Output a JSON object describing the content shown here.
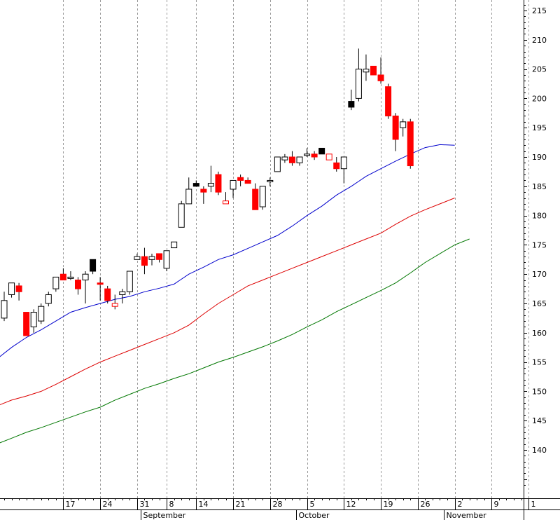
{
  "chart_data": {
    "type": "candlestick",
    "y_axis": {
      "side": "right",
      "ylim": [
        134,
        216
      ],
      "ticks": [
        140,
        145,
        150,
        155,
        160,
        165,
        170,
        175,
        180,
        185,
        190,
        195,
        200,
        205,
        210,
        215
      ]
    },
    "x_axis": {
      "day_ticks": [
        {
          "label": "17",
          "x": 8
        },
        {
          "label": "24",
          "x": 13
        },
        {
          "label": "31",
          "x": 18
        },
        {
          "label": "8",
          "x": 22
        },
        {
          "label": "14",
          "x": 26
        },
        {
          "label": "21",
          "x": 31
        },
        {
          "label": "28",
          "x": 36
        },
        {
          "label": "5",
          "x": 41
        },
        {
          "label": "12",
          "x": 46
        },
        {
          "label": "19",
          "x": 51
        },
        {
          "label": "26",
          "x": 56
        },
        {
          "label": "2",
          "x": 61
        },
        {
          "label": "9",
          "x": 66
        },
        {
          "label": "1",
          "x": 71
        }
      ],
      "month_labels": [
        {
          "label": "September",
          "x": 19
        },
        {
          "label": "October",
          "x": 40
        },
        {
          "label": "November",
          "x": 60
        }
      ],
      "grid": "dashed-vertical"
    },
    "colors": {
      "up_candle": "#ffffff",
      "down_candle": "#ff0000",
      "highlight_candle": "#000000",
      "ma_short": "#0000cc",
      "ma_mid": "#dd0000",
      "ma_long": "#007700"
    },
    "candles": [
      {
        "x": 0,
        "o": 162.5,
        "h": 167.0,
        "l": 162.0,
        "c": 165.5,
        "color": "white"
      },
      {
        "x": 1,
        "o": 166.5,
        "h": 168.5,
        "l": 166.0,
        "c": 168.5,
        "color": "white"
      },
      {
        "x": 2,
        "o": 168.0,
        "h": 168.5,
        "l": 165.5,
        "c": 167.0,
        "color": "red"
      },
      {
        "x": 3,
        "o": 163.5,
        "h": 163.5,
        "l": 159.5,
        "c": 159.5,
        "color": "red"
      },
      {
        "x": 4,
        "o": 161.0,
        "h": 164.0,
        "l": 160.0,
        "c": 163.5,
        "color": "white"
      },
      {
        "x": 5,
        "o": 162.0,
        "h": 165.0,
        "l": 161.5,
        "c": 164.5,
        "color": "white"
      },
      {
        "x": 6,
        "o": 165.0,
        "h": 167.0,
        "l": 164.5,
        "c": 166.5,
        "color": "white"
      },
      {
        "x": 7,
        "o": 167.5,
        "h": 169.5,
        "l": 167.0,
        "c": 169.5,
        "color": "white"
      },
      {
        "x": 8,
        "o": 170.0,
        "h": 171.0,
        "l": 169.0,
        "c": 169.0,
        "color": "red"
      },
      {
        "x": 9,
        "o": 169.5,
        "h": 170.5,
        "l": 169.0,
        "c": 169.5,
        "color": "white"
      },
      {
        "x": 10,
        "o": 169.0,
        "h": 169.5,
        "l": 166.5,
        "c": 167.5,
        "color": "red"
      },
      {
        "x": 11,
        "o": 169.0,
        "h": 170.5,
        "l": 165.0,
        "c": 170.0,
        "color": "white"
      },
      {
        "x": 12,
        "o": 172.5,
        "h": 172.5,
        "l": 170.0,
        "c": 170.5,
        "color": "black"
      },
      {
        "x": 13,
        "o": 168.5,
        "h": 169.5,
        "l": 165.5,
        "c": 168.5,
        "color": "red"
      },
      {
        "x": 14,
        "o": 167.5,
        "h": 168.0,
        "l": 165.0,
        "c": 165.5,
        "color": "red"
      },
      {
        "x": 15,
        "o": 165.0,
        "h": 166.5,
        "l": 164.0,
        "c": 164.5,
        "color": "red_hollow"
      },
      {
        "x": 16,
        "o": 166.5,
        "h": 167.5,
        "l": 165.0,
        "c": 167.0,
        "color": "white"
      },
      {
        "x": 17,
        "o": 167.0,
        "h": 170.5,
        "l": 166.5,
        "c": 170.5,
        "color": "white"
      },
      {
        "x": 18,
        "o": 172.5,
        "h": 173.5,
        "l": 172.5,
        "c": 173.0,
        "color": "white"
      },
      {
        "x": 19,
        "o": 173.0,
        "h": 174.5,
        "l": 170.0,
        "c": 171.5,
        "color": "red"
      },
      {
        "x": 20,
        "o": 172.5,
        "h": 173.5,
        "l": 171.5,
        "c": 173.0,
        "color": "white"
      },
      {
        "x": 21,
        "o": 173.5,
        "h": 173.5,
        "l": 172.0,
        "c": 172.5,
        "color": "red"
      },
      {
        "x": 22,
        "o": 171.0,
        "h": 174.0,
        "l": 170.5,
        "c": 174.0,
        "color": "white"
      },
      {
        "x": 23,
        "o": 174.5,
        "h": 175.5,
        "l": 174.5,
        "c": 175.5,
        "color": "white"
      },
      {
        "x": 24,
        "o": 178.0,
        "h": 182.5,
        "l": 178.0,
        "c": 182.0,
        "color": "white"
      },
      {
        "x": 25,
        "o": 182.0,
        "h": 186.5,
        "l": 182.0,
        "c": 184.5,
        "color": "white"
      },
      {
        "x": 26,
        "o": 185.5,
        "h": 186.0,
        "l": 185.0,
        "c": 185.0,
        "color": "black"
      },
      {
        "x": 27,
        "o": 184.5,
        "h": 185.0,
        "l": 182.0,
        "c": 184.0,
        "color": "red"
      },
      {
        "x": 28,
        "o": 185.5,
        "h": 188.5,
        "l": 184.0,
        "c": 185.0,
        "color": "white"
      },
      {
        "x": 29,
        "o": 187.0,
        "h": 187.5,
        "l": 183.5,
        "c": 184.0,
        "color": "red"
      },
      {
        "x": 30,
        "o": 182.5,
        "h": 184.0,
        "l": 182.0,
        "c": 182.0,
        "color": "red_hollow"
      },
      {
        "x": 31,
        "o": 184.5,
        "h": 186.0,
        "l": 183.0,
        "c": 186.0,
        "color": "white"
      },
      {
        "x": 32,
        "o": 186.5,
        "h": 187.0,
        "l": 185.0,
        "c": 186.0,
        "color": "red"
      },
      {
        "x": 33,
        "o": 186.0,
        "h": 186.5,
        "l": 185.5,
        "c": 185.5,
        "color": "red"
      },
      {
        "x": 34,
        "o": 184.5,
        "h": 185.5,
        "l": 181.0,
        "c": 181.0,
        "color": "red"
      },
      {
        "x": 35,
        "o": 181.5,
        "h": 185.0,
        "l": 181.0,
        "c": 185.0,
        "color": "white"
      },
      {
        "x": 36,
        "o": 186.0,
        "h": 186.5,
        "l": 185.0,
        "c": 186.0,
        "color": "white"
      },
      {
        "x": 37,
        "o": 187.5,
        "h": 190.0,
        "l": 187.5,
        "c": 190.0,
        "color": "white"
      },
      {
        "x": 38,
        "o": 189.5,
        "h": 190.5,
        "l": 189.0,
        "c": 190.0,
        "color": "white"
      },
      {
        "x": 39,
        "o": 190.0,
        "h": 191.0,
        "l": 188.5,
        "c": 189.0,
        "color": "red"
      },
      {
        "x": 40,
        "o": 189.0,
        "h": 190.0,
        "l": 188.5,
        "c": 190.0,
        "color": "white"
      },
      {
        "x": 41,
        "o": 190.5,
        "h": 191.5,
        "l": 190.0,
        "c": 190.5,
        "color": "white"
      },
      {
        "x": 42,
        "o": 190.5,
        "h": 191.0,
        "l": 189.5,
        "c": 190.0,
        "color": "red"
      },
      {
        "x": 43,
        "o": 191.5,
        "h": 191.5,
        "l": 190.5,
        "c": 190.5,
        "color": "black"
      },
      {
        "x": 44,
        "o": 190.5,
        "h": 190.5,
        "l": 189.5,
        "c": 189.5,
        "color": "red_hollow"
      },
      {
        "x": 45,
        "o": 189.0,
        "h": 190.0,
        "l": 187.5,
        "c": 188.0,
        "color": "red"
      },
      {
        "x": 46,
        "o": 188.0,
        "h": 190.0,
        "l": 185.5,
        "c": 190.0,
        "color": "white"
      },
      {
        "x": 47,
        "o": 199.5,
        "h": 201.5,
        "l": 198.0,
        "c": 198.5,
        "color": "black"
      },
      {
        "x": 48,
        "o": 200.0,
        "h": 208.5,
        "l": 199.5,
        "c": 205.0,
        "color": "white"
      },
      {
        "x": 49,
        "o": 205.0,
        "h": 207.5,
        "l": 203.0,
        "c": 204.5,
        "color": "white"
      },
      {
        "x": 50,
        "o": 205.5,
        "h": 205.5,
        "l": 204.0,
        "c": 204.0,
        "color": "red"
      },
      {
        "x": 51,
        "o": 204.0,
        "h": 207.0,
        "l": 202.5,
        "c": 203.0,
        "color": "red"
      },
      {
        "x": 52,
        "o": 202.0,
        "h": 202.5,
        "l": 196.5,
        "c": 197.0,
        "color": "red"
      },
      {
        "x": 53,
        "o": 197.0,
        "h": 197.5,
        "l": 191.0,
        "c": 193.0,
        "color": "red"
      },
      {
        "x": 54,
        "o": 195.0,
        "h": 196.5,
        "l": 193.5,
        "c": 196.0,
        "color": "white"
      },
      {
        "x": 55,
        "o": 196.0,
        "h": 196.5,
        "l": 188.0,
        "c": 188.5,
        "color": "red"
      }
    ],
    "moving_averages": [
      {
        "color_key": "ma_short",
        "points": [
          [
            -1,
            155.5
          ],
          [
            1,
            157.5
          ],
          [
            3,
            159.2
          ],
          [
            5,
            160.5
          ],
          [
            7,
            162.0
          ],
          [
            9,
            163.5
          ],
          [
            11,
            164.3
          ],
          [
            13,
            165.0
          ],
          [
            15,
            165.7
          ],
          [
            17,
            166.2
          ],
          [
            19,
            167.0
          ],
          [
            21,
            167.6
          ],
          [
            23,
            168.3
          ],
          [
            25,
            170.0
          ],
          [
            27,
            171.2
          ],
          [
            29,
            172.5
          ],
          [
            31,
            173.3
          ],
          [
            33,
            174.4
          ],
          [
            35,
            175.5
          ],
          [
            37,
            176.6
          ],
          [
            39,
            178.2
          ],
          [
            41,
            180.0
          ],
          [
            43,
            181.6
          ],
          [
            45,
            183.5
          ],
          [
            47,
            185.0
          ],
          [
            49,
            186.7
          ],
          [
            51,
            188.0
          ],
          [
            53,
            189.3
          ],
          [
            55,
            190.5
          ],
          [
            57,
            191.6
          ],
          [
            59,
            192.1
          ],
          [
            61,
            192.0
          ]
        ]
      },
      {
        "color_key": "ma_mid",
        "points": [
          [
            -1,
            147.5
          ],
          [
            1,
            148.5
          ],
          [
            3,
            149.2
          ],
          [
            5,
            150.0
          ],
          [
            7,
            151.2
          ],
          [
            9,
            152.5
          ],
          [
            11,
            153.8
          ],
          [
            13,
            155.0
          ],
          [
            15,
            156.0
          ],
          [
            17,
            157.0
          ],
          [
            19,
            158.0
          ],
          [
            21,
            159.0
          ],
          [
            23,
            160.0
          ],
          [
            25,
            161.3
          ],
          [
            27,
            163.2
          ],
          [
            29,
            165.0
          ],
          [
            31,
            166.5
          ],
          [
            33,
            168.0
          ],
          [
            35,
            169.0
          ],
          [
            37,
            170.0
          ],
          [
            39,
            171.0
          ],
          [
            41,
            172.0
          ],
          [
            43,
            173.0
          ],
          [
            45,
            174.0
          ],
          [
            47,
            175.0
          ],
          [
            49,
            176.0
          ],
          [
            51,
            177.0
          ],
          [
            53,
            178.5
          ],
          [
            55,
            179.9
          ],
          [
            57,
            181.0
          ],
          [
            59,
            182.0
          ],
          [
            61,
            183.0
          ]
        ]
      },
      {
        "color_key": "ma_long",
        "points": [
          [
            -1,
            141.0
          ],
          [
            1,
            142.0
          ],
          [
            3,
            143.0
          ],
          [
            5,
            143.8
          ],
          [
            7,
            144.7
          ],
          [
            9,
            145.6
          ],
          [
            11,
            146.5
          ],
          [
            13,
            147.3
          ],
          [
            15,
            148.5
          ],
          [
            17,
            149.5
          ],
          [
            19,
            150.5
          ],
          [
            21,
            151.3
          ],
          [
            23,
            152.2
          ],
          [
            25,
            153.0
          ],
          [
            27,
            154.0
          ],
          [
            29,
            155.0
          ],
          [
            31,
            155.8
          ],
          [
            33,
            156.7
          ],
          [
            35,
            157.6
          ],
          [
            37,
            158.6
          ],
          [
            39,
            159.7
          ],
          [
            41,
            161.0
          ],
          [
            43,
            162.2
          ],
          [
            45,
            163.6
          ],
          [
            47,
            164.8
          ],
          [
            49,
            166.0
          ],
          [
            51,
            167.2
          ],
          [
            53,
            168.5
          ],
          [
            55,
            170.2
          ],
          [
            57,
            172.0
          ],
          [
            59,
            173.5
          ],
          [
            61,
            175.0
          ],
          [
            63,
            176.0
          ]
        ]
      }
    ]
  }
}
